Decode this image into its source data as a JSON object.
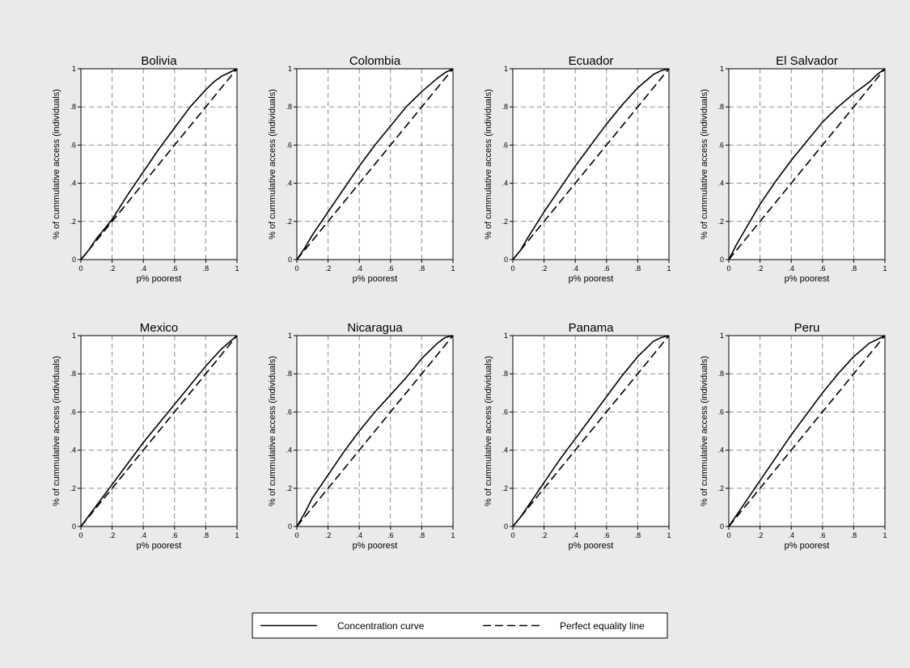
{
  "figure": {
    "background": "#eaeaea",
    "plot_background": "#ffffff",
    "grid_color": "#8c8c8c",
    "line_color": "#000000"
  },
  "legend": {
    "items": [
      {
        "label": "Concentration curve",
        "style": "solid"
      },
      {
        "label": "Perfect equality line",
        "style": "dashed"
      }
    ],
    "placement": "bottom-center"
  },
  "chart_data": [
    {
      "type": "line",
      "title": "Bolivia",
      "xlabel": "p% poorest",
      "ylabel": "% of cummulative access (individuals)",
      "xlim": [
        0,
        1
      ],
      "ylim": [
        0,
        1
      ],
      "xticks": [
        "0",
        ".2",
        ".4",
        ".6",
        ".8",
        "1"
      ],
      "yticks": [
        "0",
        ".2",
        ".4",
        ".6",
        ".8",
        "1"
      ],
      "grid": true,
      "series": [
        {
          "name": "Concentration curve",
          "style": "solid",
          "x": [
            0,
            0.05,
            0.1,
            0.15,
            0.2,
            0.3,
            0.4,
            0.5,
            0.6,
            0.7,
            0.8,
            0.85,
            0.9,
            0.95,
            1
          ],
          "y": [
            0,
            0.05,
            0.11,
            0.16,
            0.21,
            0.34,
            0.46,
            0.58,
            0.69,
            0.8,
            0.89,
            0.93,
            0.96,
            0.98,
            1
          ]
        },
        {
          "name": "Perfect equality line",
          "style": "dashed",
          "x": [
            0,
            1
          ],
          "y": [
            0,
            1
          ]
        }
      ]
    },
    {
      "type": "line",
      "title": "Colombia",
      "xlabel": "p% poorest",
      "ylabel": "% of cummulative access (individuals)",
      "xlim": [
        0,
        1
      ],
      "ylim": [
        0,
        1
      ],
      "xticks": [
        "0",
        ".2",
        ".4",
        ".6",
        ".8",
        "1"
      ],
      "yticks": [
        "0",
        ".2",
        ".4",
        ".6",
        ".8",
        "1"
      ],
      "grid": true,
      "series": [
        {
          "name": "Concentration curve",
          "style": "solid",
          "x": [
            0,
            0.05,
            0.1,
            0.2,
            0.3,
            0.4,
            0.5,
            0.6,
            0.7,
            0.8,
            0.9,
            0.95,
            1
          ],
          "y": [
            0,
            0.06,
            0.13,
            0.25,
            0.37,
            0.49,
            0.6,
            0.7,
            0.8,
            0.88,
            0.95,
            0.98,
            1
          ]
        },
        {
          "name": "Perfect equality line",
          "style": "dashed",
          "x": [
            0,
            1
          ],
          "y": [
            0,
            1
          ]
        }
      ]
    },
    {
      "type": "line",
      "title": "Ecuador",
      "xlabel": "p% poorest",
      "ylabel": "% of cummulative access (individuals)",
      "xlim": [
        0,
        1
      ],
      "ylim": [
        0,
        1
      ],
      "xticks": [
        "0",
        ".2",
        ".4",
        ".6",
        ".8",
        "1"
      ],
      "yticks": [
        "0",
        ".2",
        ".4",
        ".6",
        ".8",
        "1"
      ],
      "grid": true,
      "series": [
        {
          "name": "Concentration curve",
          "style": "solid",
          "x": [
            0,
            0.05,
            0.1,
            0.2,
            0.3,
            0.4,
            0.5,
            0.6,
            0.7,
            0.8,
            0.9,
            0.95,
            1
          ],
          "y": [
            0,
            0.05,
            0.12,
            0.25,
            0.37,
            0.49,
            0.6,
            0.71,
            0.81,
            0.9,
            0.97,
            0.99,
            1
          ]
        },
        {
          "name": "Perfect equality line",
          "style": "dashed",
          "x": [
            0,
            1
          ],
          "y": [
            0,
            1
          ]
        }
      ]
    },
    {
      "type": "line",
      "title": "El Salvador",
      "xlabel": "p% poorest",
      "ylabel": "% of cummulative access (individuals)",
      "xlim": [
        0,
        1
      ],
      "ylim": [
        0,
        1
      ],
      "xticks": [
        "0",
        ".2",
        ".4",
        ".6",
        ".8",
        "1"
      ],
      "yticks": [
        "0",
        ".2",
        ".4",
        ".6",
        ".8",
        "1"
      ],
      "grid": true,
      "series": [
        {
          "name": "Concentration curve",
          "style": "solid",
          "x": [
            0,
            0.05,
            0.1,
            0.2,
            0.3,
            0.4,
            0.5,
            0.6,
            0.7,
            0.8,
            0.9,
            0.95,
            1
          ],
          "y": [
            0,
            0.08,
            0.15,
            0.29,
            0.41,
            0.52,
            0.62,
            0.72,
            0.8,
            0.87,
            0.93,
            0.97,
            1
          ]
        },
        {
          "name": "Perfect equality line",
          "style": "dashed",
          "x": [
            0,
            1
          ],
          "y": [
            0,
            1
          ]
        }
      ]
    },
    {
      "type": "line",
      "title": "Mexico",
      "xlabel": "p% poorest",
      "ylabel": "% of cummulative access (individuals)",
      "xlim": [
        0,
        1
      ],
      "ylim": [
        0,
        1
      ],
      "xticks": [
        "0",
        ".2",
        ".4",
        ".6",
        ".8",
        "1"
      ],
      "yticks": [
        "0",
        ".2",
        ".4",
        ".6",
        ".8",
        "1"
      ],
      "grid": true,
      "series": [
        {
          "name": "Concentration curve",
          "style": "solid",
          "x": [
            0,
            0.1,
            0.2,
            0.3,
            0.4,
            0.5,
            0.6,
            0.7,
            0.8,
            0.9,
            1
          ],
          "y": [
            0,
            0.11,
            0.22,
            0.33,
            0.44,
            0.54,
            0.64,
            0.74,
            0.84,
            0.93,
            1
          ]
        },
        {
          "name": "Perfect equality line",
          "style": "dashed",
          "x": [
            0,
            1
          ],
          "y": [
            0,
            1
          ]
        }
      ]
    },
    {
      "type": "line",
      "title": "Nicaragua",
      "xlabel": "p% poorest",
      "ylabel": "% of cummulative access (individuals)",
      "xlim": [
        0,
        1
      ],
      "ylim": [
        0,
        1
      ],
      "xticks": [
        "0",
        ".2",
        ".4",
        ".6",
        ".8",
        "1"
      ],
      "yticks": [
        "0",
        ".2",
        ".4",
        ".6",
        ".8",
        "1"
      ],
      "grid": true,
      "series": [
        {
          "name": "Concentration curve",
          "style": "solid",
          "x": [
            0,
            0.05,
            0.1,
            0.2,
            0.3,
            0.4,
            0.5,
            0.6,
            0.7,
            0.8,
            0.9,
            0.95,
            1
          ],
          "y": [
            0,
            0.07,
            0.15,
            0.27,
            0.39,
            0.5,
            0.6,
            0.69,
            0.78,
            0.88,
            0.96,
            0.99,
            1
          ]
        },
        {
          "name": "Perfect equality line",
          "style": "dashed",
          "x": [
            0,
            1
          ],
          "y": [
            0,
            1
          ]
        }
      ]
    },
    {
      "type": "line",
      "title": "Panama",
      "xlabel": "p% poorest",
      "ylabel": "% of cummulative access (individuals)",
      "xlim": [
        0,
        1
      ],
      "ylim": [
        0,
        1
      ],
      "xticks": [
        "0",
        ".2",
        ".4",
        ".6",
        ".8",
        "1"
      ],
      "yticks": [
        "0",
        ".2",
        ".4",
        ".6",
        ".8",
        "1"
      ],
      "grid": true,
      "series": [
        {
          "name": "Concentration curve",
          "style": "solid",
          "x": [
            0,
            0.05,
            0.1,
            0.2,
            0.3,
            0.4,
            0.5,
            0.6,
            0.7,
            0.8,
            0.9,
            0.95,
            1
          ],
          "y": [
            0,
            0.05,
            0.11,
            0.23,
            0.35,
            0.46,
            0.57,
            0.68,
            0.79,
            0.89,
            0.97,
            0.99,
            1
          ]
        },
        {
          "name": "Perfect equality line",
          "style": "dashed",
          "x": [
            0,
            1
          ],
          "y": [
            0,
            1
          ]
        }
      ]
    },
    {
      "type": "line",
      "title": "Peru",
      "xlabel": "p% poorest",
      "ylabel": "% of cummulative access (individuals)",
      "xlim": [
        0,
        1
      ],
      "ylim": [
        0,
        1
      ],
      "xticks": [
        "0",
        ".2",
        ".4",
        ".6",
        ".8",
        "1"
      ],
      "yticks": [
        "0",
        ".2",
        ".4",
        ".6",
        ".8",
        "1"
      ],
      "grid": true,
      "series": [
        {
          "name": "Concentration curve",
          "style": "solid",
          "x": [
            0,
            0.05,
            0.1,
            0.2,
            0.3,
            0.4,
            0.5,
            0.6,
            0.7,
            0.8,
            0.9,
            0.95,
            1
          ],
          "y": [
            0,
            0.06,
            0.12,
            0.24,
            0.36,
            0.48,
            0.59,
            0.7,
            0.8,
            0.89,
            0.96,
            0.98,
            1
          ]
        },
        {
          "name": "Perfect equality line",
          "style": "dashed",
          "x": [
            0,
            1
          ],
          "y": [
            0,
            1
          ]
        }
      ]
    }
  ]
}
